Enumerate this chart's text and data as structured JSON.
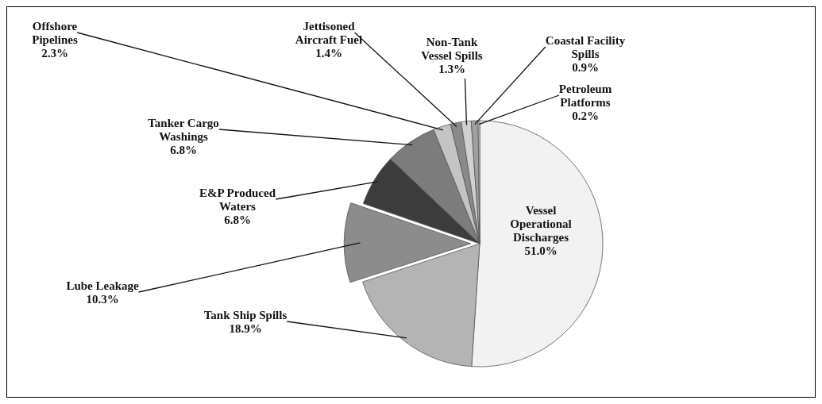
{
  "chart_data": {
    "type": "pie",
    "categories": [
      "Vessel Operational Discharges",
      "Tank Ship Spills",
      "Lube Leakage",
      "E&P Produced Waters",
      "Tanker Cargo Washings",
      "Offshore Pipelines",
      "Jettisoned Aircraft Fuel",
      "Non-Tank Vessel Spills",
      "Coastal Facility Spills",
      "Petroleum Platforms"
    ],
    "values": [
      51.0,
      18.9,
      10.3,
      6.8,
      6.8,
      2.3,
      1.4,
      1.3,
      0.9,
      0.2
    ],
    "value_labels": [
      "51.0%",
      "18.9%",
      "10.3%",
      "6.8%",
      "6.8%",
      "2.3%",
      "1.4%",
      "1.3%",
      "0.9%",
      "0.2%"
    ],
    "colors": [
      "#f2f2f2",
      "#b4b4b4",
      "#8c8c8c",
      "#3c3c3c",
      "#7c7c7c",
      "#c4c4c4",
      "#8a8a8a",
      "#d0d0d0",
      "#a0a0a0",
      "#e0e0e0"
    ],
    "legend": false
  }
}
